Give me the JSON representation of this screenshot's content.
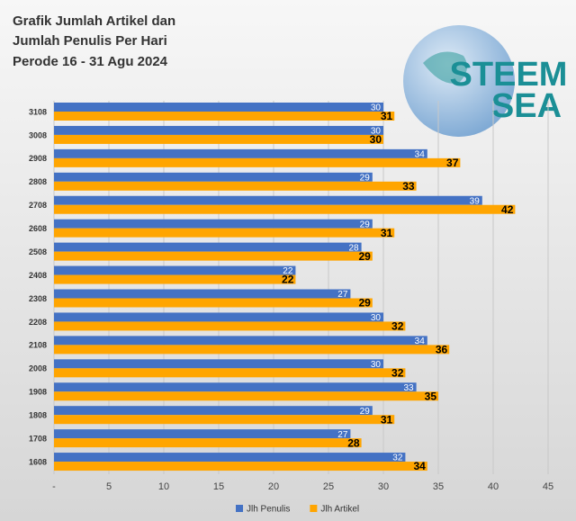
{
  "chart_data": {
    "type": "bar",
    "orientation": "horizontal",
    "title_lines": [
      "Grafik Jumlah Artikel dan",
      "Jumlah Penulis Per Hari",
      "Perode 16 - 31 Agu 2024"
    ],
    "logo_text": [
      "STEEM",
      "SEA"
    ],
    "categories": [
      "3108",
      "3008",
      "2908",
      "2808",
      "2708",
      "2608",
      "2508",
      "2408",
      "2308",
      "2208",
      "2108",
      "2008",
      "1908",
      "1808",
      "1708",
      "1608"
    ],
    "series": [
      {
        "name": "Jlh Penulis",
        "color": "#4472c4",
        "values": [
          30,
          30,
          34,
          29,
          39,
          29,
          28,
          22,
          27,
          30,
          34,
          30,
          33,
          29,
          27,
          32
        ]
      },
      {
        "name": "Jlh Artikel",
        "color": "#ffa500",
        "values": [
          31,
          30,
          37,
          33,
          42,
          31,
          29,
          22,
          29,
          32,
          36,
          32,
          35,
          31,
          28,
          34
        ]
      }
    ],
    "xlim": [
      0,
      45
    ],
    "xticks": [
      {
        "value": 0,
        "label": "-"
      },
      5,
      10,
      15,
      20,
      25,
      30,
      35,
      40,
      45
    ],
    "grid": true,
    "legend": "bottom"
  }
}
